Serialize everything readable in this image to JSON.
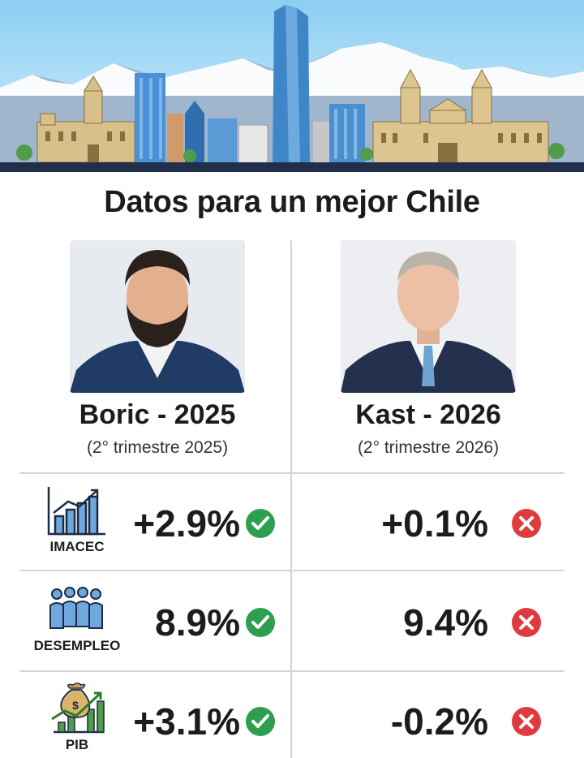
{
  "title": "Datos para un mejor Chile",
  "colors": {
    "check": "#2e9e4f",
    "cross": "#e03a3e",
    "banner_sky": "#bfe3f7",
    "building_blue": "#3b82c4"
  },
  "candidates": [
    {
      "name": "Boric - 2025",
      "period": "(2° trimestre 2025)"
    },
    {
      "name": "Kast - 2026",
      "period": "(2° trimestre 2026)"
    }
  ],
  "metrics": [
    {
      "label": "IMACEC",
      "icon": "bar-chart-growth-icon",
      "left_value": "+2.9%",
      "left_status": "check-icon",
      "right_value": "+0.1%",
      "right_status": "cross-icon"
    },
    {
      "label": "DESEMPLEO",
      "icon": "people-group-icon",
      "left_value": "8.9%",
      "left_status": "check-icon",
      "right_value": "9.4%",
      "right_status": "cross-icon"
    },
    {
      "label": "PIB",
      "icon": "money-bag-growth-icon",
      "left_value": "+3.1%",
      "left_status": "check-icon",
      "right_value": "-0.2%",
      "right_status": "cross-icon"
    }
  ]
}
